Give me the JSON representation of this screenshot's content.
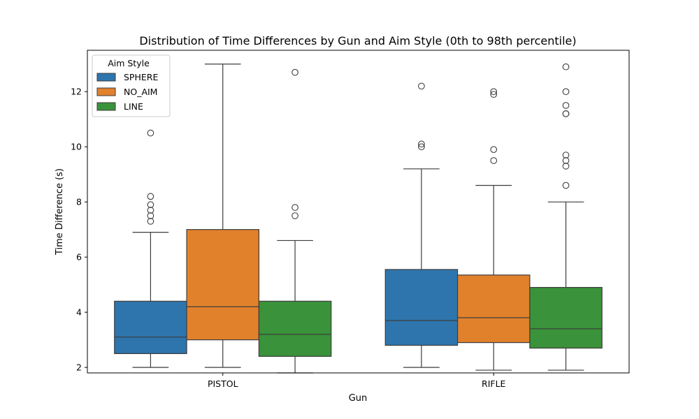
{
  "chart_data": {
    "type": "boxplot",
    "title": "Distribution of Time Differences by Gun and Aim Style (0th to 98th percentile)",
    "xlabel": "Gun",
    "ylabel": "Time Difference (s)",
    "categories": [
      "PISTOL",
      "RIFLE"
    ],
    "ylim": [
      1.8,
      13.5
    ],
    "yticks": [
      2,
      4,
      6,
      8,
      10,
      12
    ],
    "ytick_labels": [
      "2",
      "4",
      "6",
      "8",
      "10",
      "12"
    ],
    "grid": false,
    "legend": {
      "title": "Aim Style",
      "placement": "top-left"
    },
    "series": [
      {
        "name": "SPHERE",
        "color": "#2e75ad",
        "boxes": [
          {
            "whisker_low": 2.0,
            "q1": 2.5,
            "median": 3.1,
            "q3": 4.4,
            "whisker_high": 6.9,
            "outliers": [
              10.5,
              8.2,
              7.9,
              7.7,
              7.5,
              7.3
            ]
          },
          {
            "whisker_low": 2.0,
            "q1": 2.8,
            "median": 3.7,
            "q3": 5.55,
            "whisker_high": 9.2,
            "outliers": [
              12.2,
              10.1,
              10.0
            ]
          }
        ]
      },
      {
        "name": "NO_AIM",
        "color": "#e1812c",
        "boxes": [
          {
            "whisker_low": 2.0,
            "q1": 3.0,
            "median": 4.2,
            "q3": 7.0,
            "whisker_high": 13.0,
            "outliers": []
          },
          {
            "whisker_low": 1.9,
            "q1": 2.9,
            "median": 3.8,
            "q3": 5.35,
            "whisker_high": 8.6,
            "outliers": [
              12.0,
              11.9,
              9.9,
              9.5
            ]
          }
        ]
      },
      {
        "name": "LINE",
        "color": "#3a923a",
        "boxes": [
          {
            "whisker_low": 1.8,
            "q1": 2.4,
            "median": 3.2,
            "q3": 4.4,
            "whisker_high": 6.6,
            "outliers": [
              12.7,
              7.8,
              7.5
            ]
          },
          {
            "whisker_low": 1.9,
            "q1": 2.7,
            "median": 3.4,
            "q3": 4.9,
            "whisker_high": 8.0,
            "outliers": [
              12.9,
              12.0,
              11.5,
              11.2,
              11.2,
              9.7,
              9.5,
              9.3,
              8.6
            ]
          }
        ]
      }
    ]
  }
}
